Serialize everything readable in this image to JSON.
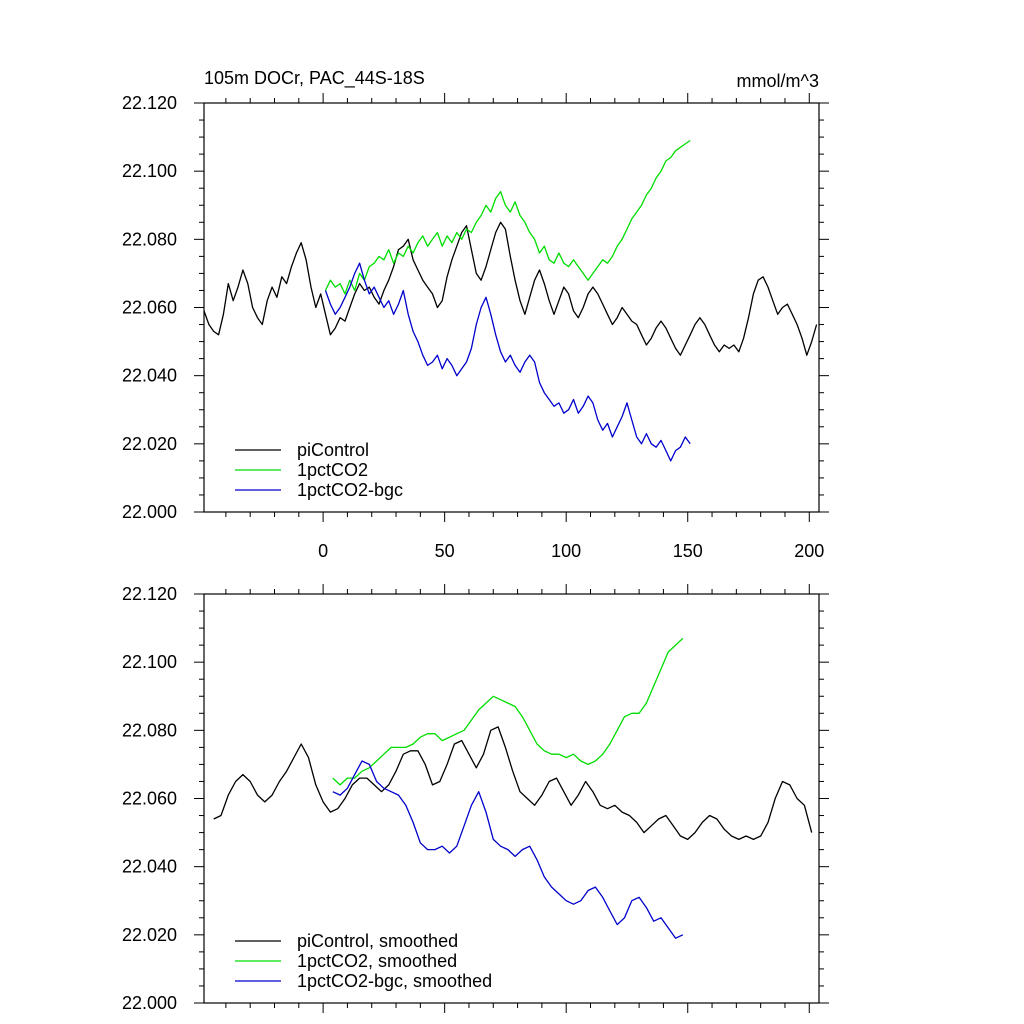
{
  "chart_data": [
    {
      "type": "line",
      "title": "105m DOCr, PAC_44S-18S",
      "units_label": "mmol/m^3",
      "xlim": [
        -49,
        204
      ],
      "ylim": [
        22.0,
        22.12
      ],
      "x_ticks": [
        0,
        50,
        100,
        150,
        200
      ],
      "x_tick_labels": [
        "0",
        "50",
        "100",
        "150",
        "200"
      ],
      "y_ticks": [
        22.0,
        22.02,
        22.04,
        22.06,
        22.08,
        22.1,
        22.12
      ],
      "y_tick_labels": [
        "22.000",
        "22.020",
        "22.040",
        "22.060",
        "22.080",
        "22.100",
        "22.120"
      ],
      "legend_position": "bottom-left",
      "series": [
        {
          "name": "piControl",
          "color": "#000000",
          "x": [
            -49,
            -47,
            -45,
            -43,
            -41,
            -39,
            -37,
            -35,
            -33,
            -31,
            -29,
            -27,
            -25,
            -23,
            -21,
            -19,
            -17,
            -15,
            -13,
            -11,
            -9,
            -7,
            -5,
            -3,
            -1,
            1,
            3,
            5,
            7,
            9,
            11,
            13,
            15,
            17,
            19,
            21,
            23,
            25,
            27,
            29,
            31,
            33,
            35,
            37,
            39,
            41,
            43,
            45,
            47,
            49,
            51,
            53,
            55,
            57,
            59,
            61,
            63,
            65,
            67,
            69,
            71,
            73,
            75,
            77,
            79,
            81,
            83,
            85,
            87,
            89,
            91,
            93,
            95,
            97,
            99,
            101,
            103,
            105,
            107,
            109,
            111,
            113,
            115,
            117,
            119,
            121,
            123,
            125,
            127,
            129,
            131,
            133,
            135,
            137,
            139,
            141,
            143,
            145,
            147,
            149,
            151,
            153,
            155,
            157,
            159,
            161,
            163,
            165,
            167,
            169,
            171,
            173,
            175,
            177,
            179,
            181,
            183,
            185,
            187,
            189,
            191,
            193,
            195,
            197,
            199,
            201,
            203
          ],
          "y": [
            22.059,
            22.055,
            22.053,
            22.052,
            22.058,
            22.067,
            22.062,
            22.066,
            22.071,
            22.067,
            22.06,
            22.057,
            22.055,
            22.062,
            22.066,
            22.063,
            22.069,
            22.067,
            22.072,
            22.076,
            22.079,
            22.074,
            22.066,
            22.06,
            22.064,
            22.058,
            22.052,
            22.054,
            22.057,
            22.056,
            22.06,
            22.064,
            22.067,
            22.065,
            22.066,
            22.063,
            22.061,
            22.065,
            22.068,
            22.072,
            22.077,
            22.078,
            22.08,
            22.074,
            22.071,
            22.068,
            22.066,
            22.064,
            22.06,
            22.062,
            22.069,
            22.074,
            22.078,
            22.082,
            22.084,
            22.077,
            22.07,
            22.068,
            22.072,
            22.077,
            22.082,
            22.085,
            22.083,
            22.075,
            22.068,
            22.062,
            22.058,
            22.063,
            22.068,
            22.071,
            22.067,
            22.062,
            22.058,
            22.062,
            22.066,
            22.064,
            22.059,
            22.057,
            22.06,
            22.064,
            22.066,
            22.064,
            22.061,
            22.058,
            22.055,
            22.057,
            22.06,
            22.058,
            22.056,
            22.055,
            22.052,
            22.049,
            22.051,
            22.054,
            22.056,
            22.054,
            22.051,
            22.048,
            22.046,
            22.049,
            22.052,
            22.055,
            22.057,
            22.055,
            22.052,
            22.049,
            22.047,
            22.049,
            22.048,
            22.049,
            22.047,
            22.051,
            22.057,
            22.064,
            22.068,
            22.069,
            22.066,
            22.062,
            22.058,
            22.06,
            22.061,
            22.058,
            22.055,
            22.051,
            22.046,
            22.05,
            22.055
          ]
        },
        {
          "name": "1pctCO2",
          "color": "#00dd00",
          "x": [
            1,
            3,
            5,
            7,
            9,
            11,
            13,
            15,
            17,
            19,
            21,
            23,
            25,
            27,
            29,
            31,
            33,
            35,
            37,
            39,
            41,
            43,
            45,
            47,
            49,
            51,
            53,
            55,
            57,
            59,
            61,
            63,
            65,
            67,
            69,
            71,
            73,
            75,
            77,
            79,
            81,
            83,
            85,
            87,
            89,
            91,
            93,
            95,
            97,
            99,
            101,
            103,
            105,
            107,
            109,
            111,
            113,
            115,
            117,
            119,
            121,
            123,
            125,
            127,
            129,
            131,
            133,
            135,
            137,
            139,
            141,
            143,
            145,
            147,
            149,
            151
          ],
          "y": [
            22.065,
            22.068,
            22.066,
            22.067,
            22.064,
            22.068,
            22.065,
            22.07,
            22.068,
            22.072,
            22.073,
            22.075,
            22.074,
            22.077,
            22.073,
            22.076,
            22.075,
            22.078,
            22.076,
            22.079,
            22.081,
            22.078,
            22.08,
            22.082,
            22.078,
            22.081,
            22.079,
            22.082,
            22.08,
            22.083,
            22.082,
            22.085,
            22.087,
            22.09,
            22.088,
            22.092,
            22.094,
            22.09,
            22.088,
            22.091,
            22.087,
            22.085,
            22.082,
            22.08,
            22.076,
            22.078,
            22.074,
            22.073,
            22.076,
            22.073,
            22.072,
            22.074,
            22.072,
            22.07,
            22.068,
            22.07,
            22.072,
            22.074,
            22.073,
            22.075,
            22.078,
            22.08,
            22.083,
            22.086,
            22.088,
            22.09,
            22.093,
            22.095,
            22.098,
            22.1,
            22.103,
            22.104,
            22.106,
            22.107,
            22.108,
            22.109
          ]
        },
        {
          "name": "1pctCO2-bgc",
          "color": "#0000cc",
          "x": [
            1,
            3,
            5,
            7,
            9,
            11,
            13,
            15,
            17,
            19,
            21,
            23,
            25,
            27,
            29,
            31,
            33,
            35,
            37,
            39,
            41,
            43,
            45,
            47,
            49,
            51,
            53,
            55,
            57,
            59,
            61,
            63,
            65,
            67,
            69,
            71,
            73,
            75,
            77,
            79,
            81,
            83,
            85,
            87,
            89,
            91,
            93,
            95,
            97,
            99,
            101,
            103,
            105,
            107,
            109,
            111,
            113,
            115,
            117,
            119,
            121,
            123,
            125,
            127,
            129,
            131,
            133,
            135,
            137,
            139,
            141,
            143,
            145,
            147,
            149,
            151
          ],
          "y": [
            22.065,
            22.061,
            22.058,
            22.06,
            22.063,
            22.066,
            22.07,
            22.073,
            22.068,
            22.064,
            22.066,
            22.063,
            22.06,
            22.062,
            22.058,
            22.061,
            22.065,
            22.058,
            22.053,
            22.05,
            22.046,
            22.043,
            22.044,
            22.046,
            22.042,
            22.045,
            22.043,
            22.04,
            22.042,
            22.044,
            22.048,
            22.055,
            22.06,
            22.063,
            22.058,
            22.052,
            22.047,
            22.044,
            22.046,
            22.043,
            22.041,
            22.044,
            22.046,
            22.044,
            22.038,
            22.035,
            22.033,
            22.031,
            22.032,
            22.029,
            22.03,
            22.033,
            22.029,
            22.031,
            22.034,
            22.032,
            22.027,
            22.024,
            22.026,
            22.022,
            22.025,
            22.028,
            22.032,
            22.027,
            22.022,
            22.02,
            22.023,
            22.02,
            22.019,
            22.021,
            22.018,
            22.015,
            22.018,
            22.019,
            22.022,
            22.02
          ]
        }
      ]
    },
    {
      "type": "line",
      "title": "",
      "xlim": [
        -49,
        204
      ],
      "ylim": [
        22.0,
        22.12
      ],
      "x_ticks": [
        0,
        50,
        100,
        150,
        200
      ],
      "y_ticks": [
        22.0,
        22.02,
        22.04,
        22.06,
        22.08,
        22.1,
        22.12
      ],
      "y_tick_labels": [
        "22.000",
        "22.020",
        "22.040",
        "22.060",
        "22.080",
        "22.100",
        "22.120"
      ],
      "legend_position": "bottom-left",
      "series": [
        {
          "name": "piControl, smoothed",
          "color": "#000000",
          "x": [
            -45,
            -42,
            -39,
            -36,
            -33,
            -30,
            -27,
            -24,
            -21,
            -18,
            -15,
            -12,
            -9,
            -6,
            -3,
            0,
            3,
            6,
            9,
            12,
            15,
            18,
            21,
            24,
            27,
            30,
            33,
            36,
            39,
            42,
            45,
            48,
            51,
            54,
            57,
            60,
            63,
            66,
            69,
            72,
            75,
            78,
            81,
            84,
            87,
            90,
            93,
            96,
            99,
            102,
            105,
            108,
            111,
            114,
            117,
            120,
            123,
            126,
            129,
            132,
            135,
            138,
            141,
            144,
            147,
            150,
            153,
            156,
            159,
            162,
            165,
            168,
            171,
            174,
            177,
            180,
            183,
            186,
            189,
            192,
            195,
            198,
            201
          ],
          "y": [
            22.054,
            22.055,
            22.061,
            22.065,
            22.067,
            22.065,
            22.061,
            22.059,
            22.061,
            22.065,
            22.068,
            22.072,
            22.076,
            22.072,
            22.064,
            22.059,
            22.056,
            22.057,
            22.06,
            22.064,
            22.066,
            22.066,
            22.064,
            22.062,
            22.064,
            22.068,
            22.073,
            22.074,
            22.074,
            22.07,
            22.064,
            22.065,
            22.07,
            22.076,
            22.077,
            22.073,
            22.069,
            22.073,
            22.08,
            22.081,
            22.075,
            22.068,
            22.062,
            22.06,
            22.058,
            22.061,
            22.065,
            22.066,
            22.062,
            22.058,
            22.061,
            22.065,
            22.062,
            22.058,
            22.057,
            22.058,
            22.056,
            22.055,
            22.053,
            22.05,
            22.052,
            22.054,
            22.055,
            22.052,
            22.049,
            22.048,
            22.05,
            22.053,
            22.055,
            22.054,
            22.051,
            22.049,
            22.048,
            22.049,
            22.048,
            22.049,
            22.053,
            22.06,
            22.065,
            22.064,
            22.06,
            22.058,
            22.05
          ]
        },
        {
          "name": "1pctCO2, smoothed",
          "color": "#00dd00",
          "x": [
            4,
            7,
            10,
            13,
            16,
            19,
            22,
            25,
            28,
            31,
            34,
            37,
            40,
            43,
            46,
            49,
            52,
            55,
            58,
            61,
            64,
            67,
            70,
            73,
            76,
            79,
            82,
            85,
            88,
            91,
            94,
            97,
            100,
            103,
            106,
            109,
            112,
            115,
            118,
            121,
            124,
            127,
            130,
            133,
            136,
            139,
            142,
            145,
            148
          ],
          "y": [
            22.066,
            22.064,
            22.066,
            22.066,
            22.068,
            22.069,
            22.071,
            22.073,
            22.075,
            22.075,
            22.075,
            22.076,
            22.078,
            22.079,
            22.079,
            22.077,
            22.078,
            22.079,
            22.08,
            22.083,
            22.086,
            22.088,
            22.09,
            22.089,
            22.088,
            22.087,
            22.084,
            22.08,
            22.076,
            22.074,
            22.073,
            22.073,
            22.072,
            22.073,
            22.071,
            22.07,
            22.071,
            22.073,
            22.076,
            22.08,
            22.084,
            22.085,
            22.085,
            22.088,
            22.093,
            22.098,
            22.103,
            22.105,
            22.107
          ]
        },
        {
          "name": "1pctCO2-bgc, smoothed",
          "color": "#0000cc",
          "x": [
            4,
            7,
            10,
            13,
            16,
            19,
            22,
            25,
            28,
            31,
            34,
            37,
            40,
            43,
            46,
            49,
            52,
            55,
            58,
            61,
            64,
            67,
            70,
            73,
            76,
            79,
            82,
            85,
            88,
            91,
            94,
            97,
            100,
            103,
            106,
            109,
            112,
            115,
            118,
            121,
            124,
            127,
            130,
            133,
            136,
            139,
            142,
            145,
            148
          ],
          "y": [
            22.062,
            22.061,
            22.063,
            22.067,
            22.071,
            22.07,
            22.065,
            22.063,
            22.062,
            22.061,
            22.058,
            22.053,
            22.047,
            22.045,
            22.045,
            22.046,
            22.044,
            22.046,
            22.052,
            22.058,
            22.062,
            22.056,
            22.048,
            22.046,
            22.045,
            22.043,
            22.045,
            22.046,
            22.042,
            22.037,
            22.034,
            22.032,
            22.03,
            22.029,
            22.03,
            22.033,
            22.034,
            22.031,
            22.027,
            22.023,
            22.025,
            22.03,
            22.031,
            22.028,
            22.024,
            22.025,
            22.022,
            22.019,
            22.02
          ]
        }
      ]
    }
  ]
}
